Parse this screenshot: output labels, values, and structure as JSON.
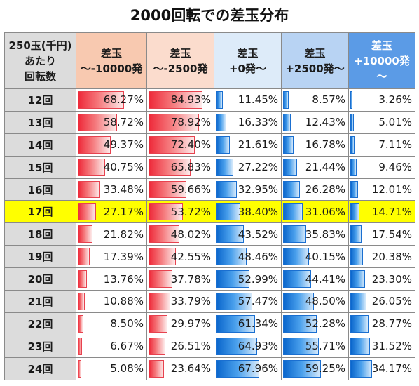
{
  "chart_data": {
    "type": "table",
    "title": "2000回転での差玉分布",
    "corner_header": [
      "250玉(千円)",
      "あたり",
      "回転数"
    ],
    "columns": [
      {
        "label": [
          "差玉",
          "～-10000発"
        ],
        "bar_color": "red"
      },
      {
        "label": [
          "差玉",
          "～-2500発"
        ],
        "bar_color": "red"
      },
      {
        "label": [
          "差玉",
          "+0発～"
        ],
        "bar_color": "blue"
      },
      {
        "label": [
          "差玉",
          "+2500発～"
        ],
        "bar_color": "blue"
      },
      {
        "label": [
          "差玉",
          "+10000発～"
        ],
        "bar_color": "blue"
      }
    ],
    "highlight_row": "17回",
    "highlight_color": "#ffff00",
    "rows": [
      {
        "label": "12回",
        "values": [
          "68.27%",
          "84.93%",
          "11.45%",
          "8.57%",
          "3.26%"
        ]
      },
      {
        "label": "13回",
        "values": [
          "58.72%",
          "78.92%",
          "16.33%",
          "12.43%",
          "5.01%"
        ]
      },
      {
        "label": "14回",
        "values": [
          "49.37%",
          "72.40%",
          "21.61%",
          "16.78%",
          "7.11%"
        ]
      },
      {
        "label": "15回",
        "values": [
          "40.75%",
          "65.83%",
          "27.22%",
          "21.44%",
          "9.46%"
        ]
      },
      {
        "label": "16回",
        "values": [
          "33.48%",
          "59.66%",
          "32.95%",
          "26.28%",
          "12.01%"
        ]
      },
      {
        "label": "17回",
        "values": [
          "27.17%",
          "53.72%",
          "38.40%",
          "31.06%",
          "14.71%"
        ]
      },
      {
        "label": "18回",
        "values": [
          "21.82%",
          "48.02%",
          "43.52%",
          "35.83%",
          "17.54%"
        ]
      },
      {
        "label": "19回",
        "values": [
          "17.39%",
          "42.55%",
          "48.46%",
          "40.15%",
          "20.38%"
        ]
      },
      {
        "label": "20回",
        "values": [
          "13.76%",
          "37.78%",
          "52.99%",
          "44.41%",
          "23.30%"
        ]
      },
      {
        "label": "21回",
        "values": [
          "10.88%",
          "33.79%",
          "57.47%",
          "48.50%",
          "26.05%"
        ]
      },
      {
        "label": "22回",
        "values": [
          "8.50%",
          "29.97%",
          "61.34%",
          "52.28%",
          "28.77%"
        ]
      },
      {
        "label": "23回",
        "values": [
          "6.67%",
          "26.51%",
          "64.93%",
          "55.71%",
          "31.52%"
        ]
      },
      {
        "label": "24回",
        "values": [
          "5.08%",
          "23.64%",
          "67.96%",
          "59.25%",
          "34.17%"
        ]
      }
    ]
  }
}
